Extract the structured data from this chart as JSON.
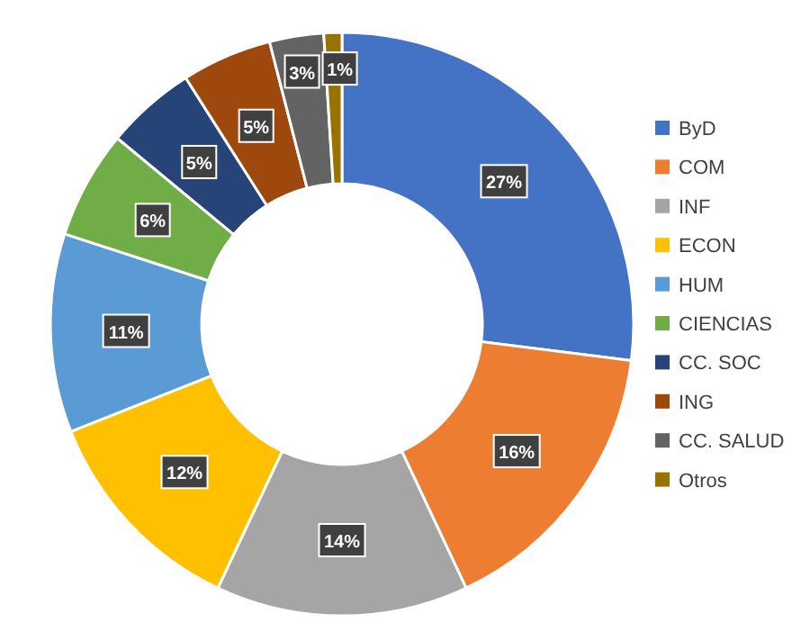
{
  "chart_data": {
    "type": "donut",
    "categories": [
      "ByD",
      "COM",
      "INF",
      "ECON",
      "HUM",
      "CIENCIAS",
      "CC. SOC",
      "ING",
      "CC. SALUD",
      "Otros"
    ],
    "values": [
      27,
      16,
      14,
      12,
      11,
      6,
      5,
      5,
      3,
      1
    ],
    "colors": [
      "#4472c4",
      "#ed7d31",
      "#a5a5a5",
      "#ffc000",
      "#5b9bd5",
      "#70ad47",
      "#264478",
      "#9e480e",
      "#636363",
      "#997300"
    ],
    "value_labels": [
      "27%",
      "16%",
      "14%",
      "12%",
      "11%",
      "6%",
      "5%",
      "5%",
      "3%",
      "1%"
    ],
    "legend": "right"
  }
}
